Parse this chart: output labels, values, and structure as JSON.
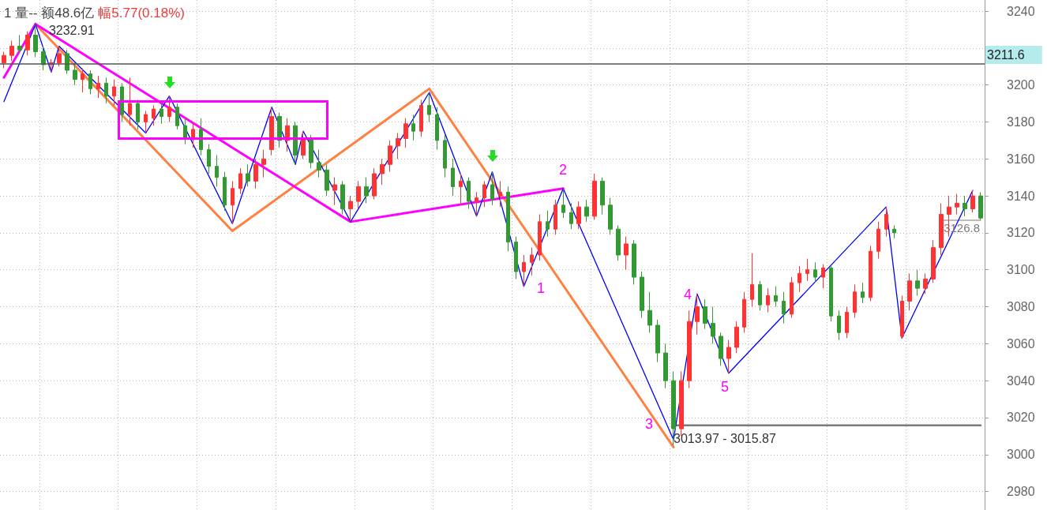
{
  "chart_data": {
    "type": "candlestick",
    "title": "1 量-- 额48.6亿",
    "subtitle": "幅5.77(0.18%)",
    "categories": [
      null,
      null,
      null,
      null,
      null,
      null,
      null,
      null,
      null,
      null,
      null,
      null,
      null,
      null,
      null,
      null,
      null,
      null,
      null,
      null,
      null,
      null,
      null,
      null,
      null,
      null,
      null,
      null,
      null,
      null,
      null,
      null,
      null,
      null,
      null,
      null,
      null,
      null,
      null,
      null,
      null,
      null,
      null,
      null,
      null,
      null,
      null,
      null,
      null,
      null,
      null,
      null,
      null,
      null,
      null,
      null,
      null,
      null,
      null,
      null,
      null,
      null,
      null,
      null,
      null,
      null,
      null,
      null,
      null,
      null,
      null,
      null,
      null,
      null,
      null,
      null,
      null,
      null,
      null,
      null,
      null,
      null,
      null,
      null,
      null,
      null,
      null,
      null,
      null,
      null,
      null,
      null,
      null,
      null,
      null,
      null,
      null,
      null,
      null,
      null,
      null,
      null,
      null,
      null,
      null,
      null,
      null,
      null,
      null,
      null,
      null,
      null,
      null,
      null,
      null,
      null,
      null,
      null,
      null,
      null,
      null,
      null,
      null,
      null,
      null
    ],
    "ohlc": [
      [
        3212,
        3218,
        3209,
        3216
      ],
      [
        3216,
        3224,
        3213,
        3221
      ],
      [
        3221,
        3227,
        3217,
        3219
      ],
      [
        3219,
        3229,
        3216,
        3227
      ],
      [
        3227,
        3232.91,
        3215,
        3218
      ],
      [
        3218,
        3221,
        3208,
        3211
      ],
      [
        3211,
        3214,
        3207,
        3212
      ],
      [
        3212,
        3221,
        3210,
        3217
      ],
      [
        3217,
        3219,
        3206,
        3208
      ],
      [
        3208,
        3212,
        3200,
        3203
      ],
      [
        3203,
        3209,
        3196,
        3206
      ],
      [
        3206,
        3208,
        3195,
        3198
      ],
      [
        3198,
        3205,
        3193,
        3201
      ],
      [
        3201,
        3204,
        3190,
        3194
      ],
      [
        3194,
        3203,
        3189,
        3199
      ],
      [
        3199,
        3201,
        3180,
        3184
      ],
      [
        3184,
        3204,
        3178,
        3190
      ],
      [
        3190,
        3192,
        3176,
        3180
      ],
      [
        3180,
        3186,
        3174,
        3184
      ],
      [
        3182,
        3189,
        3178,
        3187
      ],
      [
        3187,
        3190,
        3179,
        3183
      ],
      [
        3183,
        3194,
        3180,
        3188
      ],
      [
        3188,
        3190,
        3176,
        3178
      ],
      [
        3178,
        3182,
        3168,
        3171
      ],
      [
        3171,
        3180,
        3166,
        3176
      ],
      [
        3176,
        3182,
        3162,
        3165
      ],
      [
        3165,
        3168,
        3152,
        3156
      ],
      [
        3156,
        3162,
        3145,
        3150
      ],
      [
        3150,
        3153,
        3132,
        3135
      ],
      [
        3135,
        3148,
        3125,
        3144
      ],
      [
        3144,
        3155,
        3141,
        3152
      ],
      [
        3152,
        3157,
        3145,
        3148
      ],
      [
        3148,
        3160,
        3144,
        3157
      ],
      [
        3157,
        3165,
        3150,
        3160
      ],
      [
        3165,
        3188,
        3162,
        3183
      ],
      [
        3183,
        3185,
        3166,
        3170
      ],
      [
        3170,
        3182,
        3164,
        3178
      ],
      [
        3178,
        3180,
        3157,
        3162
      ],
      [
        3162,
        3175,
        3160,
        3171
      ],
      [
        3171,
        3173,
        3155,
        3158
      ],
      [
        3158,
        3165,
        3150,
        3154
      ],
      [
        3154,
        3157,
        3140,
        3143
      ],
      [
        3143,
        3150,
        3135,
        3146
      ],
      [
        3146,
        3148,
        3130,
        3133
      ],
      [
        3133,
        3140,
        3126,
        3137
      ],
      [
        3137,
        3148,
        3133,
        3145
      ],
      [
        3145,
        3150,
        3136,
        3140
      ],
      [
        3140,
        3155,
        3138,
        3152
      ],
      [
        3152,
        3160,
        3146,
        3157
      ],
      [
        3157,
        3170,
        3153,
        3167
      ],
      [
        3167,
        3174,
        3160,
        3171
      ],
      [
        3171,
        3182,
        3166,
        3179
      ],
      [
        3179,
        3184,
        3170,
        3175
      ],
      [
        3175,
        3192,
        3172,
        3189
      ],
      [
        3189,
        3196,
        3180,
        3184
      ],
      [
        3184,
        3188,
        3165,
        3170
      ],
      [
        3170,
        3173,
        3150,
        3155
      ],
      [
        3155,
        3160,
        3140,
        3145
      ],
      [
        3145,
        3152,
        3135,
        3148
      ],
      [
        3148,
        3150,
        3133,
        3137
      ],
      [
        3137,
        3142,
        3129,
        3139
      ],
      [
        3139,
        3148,
        3134,
        3146
      ],
      [
        3146,
        3153,
        3135,
        3138
      ],
      [
        3140,
        3148,
        3134,
        3142
      ],
      [
        3142,
        3145,
        3110,
        3115
      ],
      [
        3115,
        3118,
        3095,
        3099
      ],
      [
        3099,
        3108,
        3091,
        3104
      ],
      [
        3104,
        3112,
        3097,
        3108
      ],
      [
        3108,
        3130,
        3105,
        3126
      ],
      [
        3126,
        3132,
        3118,
        3122
      ],
      [
        3122,
        3138,
        3119,
        3135
      ],
      [
        3135,
        3144,
        3128,
        3131
      ],
      [
        3131,
        3136,
        3122,
        3125
      ],
      [
        3125,
        3137,
        3122,
        3134
      ],
      [
        3134,
        3138,
        3126,
        3129
      ],
      [
        3129,
        3152,
        3127,
        3148
      ],
      [
        3148,
        3150,
        3130,
        3135
      ],
      [
        3135,
        3139,
        3119,
        3122
      ],
      [
        3122,
        3124,
        3105,
        3108
      ],
      [
        3108,
        3118,
        3100,
        3114
      ],
      [
        3114,
        3116,
        3092,
        3096
      ],
      [
        3096,
        3099,
        3074,
        3078
      ],
      [
        3078,
        3088,
        3066,
        3070
      ],
      [
        3070,
        3073,
        3050,
        3055
      ],
      [
        3055,
        3060,
        3036,
        3040
      ],
      [
        3040,
        3045,
        3005,
        3014
      ],
      [
        3014,
        3045,
        3010,
        3040
      ],
      [
        3040,
        3078,
        3036,
        3072
      ],
      [
        3072,
        3087,
        3065,
        3080
      ],
      [
        3080,
        3084,
        3068,
        3071
      ],
      [
        3071,
        3080,
        3060,
        3064
      ],
      [
        3064,
        3066,
        3048,
        3052
      ],
      [
        3052,
        3062,
        3044,
        3058
      ],
      [
        3058,
        3072,
        3055,
        3069
      ],
      [
        3069,
        3088,
        3066,
        3084
      ],
      [
        3084,
        3109,
        3080,
        3092
      ],
      [
        3092,
        3094,
        3078,
        3081
      ],
      [
        3081,
        3090,
        3077,
        3086
      ],
      [
        3086,
        3091,
        3080,
        3083
      ],
      [
        3083,
        3088,
        3071,
        3076
      ],
      [
        3076,
        3096,
        3074,
        3093
      ],
      [
        3093,
        3102,
        3088,
        3098
      ],
      [
        3098,
        3106,
        3094,
        3100
      ],
      [
        3100,
        3104,
        3093,
        3096
      ],
      [
        3096,
        3103,
        3090,
        3101
      ],
      [
        3101,
        3102,
        3072,
        3075
      ],
      [
        3075,
        3078,
        3062,
        3066
      ],
      [
        3066,
        3080,
        3063,
        3077
      ],
      [
        3077,
        3092,
        3074,
        3088
      ],
      [
        3088,
        3093,
        3082,
        3085
      ],
      [
        3085,
        3113,
        3083,
        3110
      ],
      [
        3110,
        3126,
        3106,
        3122
      ],
      [
        3122,
        3134,
        3118,
        3130
      ],
      [
        3122,
        3124,
        3117,
        3120
      ],
      [
        3064,
        3086,
        3063,
        3083
      ],
      [
        3083,
        3098,
        3078,
        3094
      ],
      [
        3094,
        3100,
        3086,
        3090
      ],
      [
        3090,
        3098,
        3087,
        3095
      ],
      [
        3095,
        3116,
        3093,
        3112
      ],
      [
        3112,
        3136,
        3108,
        3130
      ],
      [
        3130,
        3140,
        3118,
        3134
      ],
      [
        3134,
        3141,
        3130,
        3136
      ],
      [
        3136,
        3140,
        3129,
        3133
      ],
      [
        3133,
        3143,
        3131,
        3140
      ],
      [
        3140,
        3142,
        3127,
        3128
      ]
    ],
    "colors": [
      "#ff3333",
      "#ff3333",
      "#339933",
      "#ff3333",
      "#339933",
      "#339933",
      "#ff3333",
      "#ff3333",
      "#339933",
      "#339933",
      "#ff3333",
      "#339933",
      "#ff3333",
      "#339933",
      "#ff3333",
      "#339933",
      "#ff3333",
      "#339933",
      "#ff3333",
      "#ff3333",
      "#339933",
      "#ff3333",
      "#339933",
      "#339933",
      "#ff3333",
      "#339933",
      "#339933",
      "#339933",
      "#339933",
      "#ff3333",
      "#ff3333",
      "#339933",
      "#ff3333",
      "#ff3333",
      "#ff3333",
      "#339933",
      "#ff3333",
      "#339933",
      "#ff3333",
      "#339933",
      "#339933",
      "#339933",
      "#ff3333",
      "#339933",
      "#ff3333",
      "#ff3333",
      "#339933",
      "#ff3333",
      "#ff3333",
      "#ff3333",
      "#ff3333",
      "#ff3333",
      "#339933",
      "#ff3333",
      "#339933",
      "#339933",
      "#339933",
      "#339933",
      "#ff3333",
      "#339933",
      "#ff3333",
      "#ff3333",
      "#339933",
      "#ff3333",
      "#339933",
      "#339933",
      "#ff3333",
      "#ff3333",
      "#ff3333",
      "#339933",
      "#ff3333",
      "#339933",
      "#339933",
      "#ff3333",
      "#339933",
      "#ff3333",
      "#339933",
      "#339933",
      "#339933",
      "#ff3333",
      "#339933",
      "#339933",
      "#339933",
      "#339933",
      "#339933",
      "#339933",
      "#ff3333",
      "#ff3333",
      "#ff3333",
      "#339933",
      "#339933",
      "#339933",
      "#ff3333",
      "#ff3333",
      "#ff3333",
      "#ff3333",
      "#339933",
      "#ff3333",
      "#339933",
      "#339933",
      "#ff3333",
      "#ff3333",
      "#ff3333",
      "#339933",
      "#ff3333",
      "#339933",
      "#339933",
      "#ff3333",
      "#ff3333",
      "#339933",
      "#ff3333",
      "#ff3333",
      "#ff3333",
      "#339933",
      "#ff3333",
      "#ff3333",
      "#339933",
      "#ff3333",
      "#ff3333",
      "#ff3333",
      "#ff3333",
      "#ff3333",
      "#339933",
      "#ff3333",
      "#339933"
    ],
    "series": [
      {
        "type": "line",
        "color": "#7a7a7a",
        "values": [
          null,
          null,
          null,
          null,
          null,
          null,
          null,
          null,
          null,
          null,
          null,
          null,
          null,
          null,
          null,
          null,
          null,
          null,
          null,
          null,
          null,
          null,
          null,
          null,
          null,
          null,
          null,
          null,
          null,
          null,
          null,
          null,
          null,
          null,
          null,
          null,
          null,
          null,
          null,
          null,
          null,
          null,
          null,
          null,
          null,
          null,
          null,
          null,
          null,
          null,
          null,
          null,
          null,
          null,
          null,
          null,
          null,
          null,
          null,
          null,
          null,
          null,
          null,
          null,
          null,
          null,
          null,
          null,
          null,
          null,
          null,
          null,
          null,
          null,
          null,
          null,
          null,
          null,
          null,
          null,
          null,
          null,
          null,
          null,
          null,
          3015.87,
          3015.87,
          3015.87,
          3015.87,
          3015.87,
          3015.87,
          3015.87,
          3015.87,
          3015.87,
          3015.87,
          3015.87,
          3015.87,
          3015.87,
          3015.87,
          3015.87,
          3015.87,
          3015.87,
          3015.87,
          3015.87,
          3015.87,
          3015.87,
          3015.87,
          3015.87,
          3015.87,
          3015.87,
          3015.87,
          3015.87,
          3015.87,
          3015.87,
          3015.87,
          3015.87,
          3015.87,
          3015.87,
          3015.87,
          3015.87,
          3015.87,
          3015.87,
          3015.87,
          3015.87,
          3015.87
        ]
      },
      {
        "type": "line",
        "color": "#7a7a7a",
        "values": [
          null,
          null,
          null,
          null,
          null,
          null,
          null,
          null,
          null,
          null,
          null,
          null,
          null,
          null,
          null,
          null,
          null,
          null,
          null,
          null,
          null,
          null,
          null,
          null,
          null,
          null,
          null,
          null,
          null,
          null,
          null,
          null,
          null,
          null,
          null,
          null,
          null,
          null,
          null,
          null,
          null,
          null,
          null,
          null,
          null,
          null,
          null,
          null,
          null,
          null,
          null,
          null,
          null,
          null,
          null,
          null,
          null,
          null,
          null,
          null,
          null,
          null,
          null,
          null,
          null,
          null,
          null,
          null,
          null,
          null,
          null,
          null,
          null,
          null,
          null,
          null,
          null,
          null,
          null,
          null,
          null,
          null,
          null,
          null,
          null,
          null,
          null,
          null,
          null,
          null,
          null,
          null,
          null,
          null,
          null,
          null,
          null,
          null,
          null,
          null,
          null,
          null,
          null,
          null,
          null,
          null,
          null,
          null,
          null,
          null,
          null,
          null,
          null,
          null,
          null,
          null,
          null,
          null,
          null,
          3126.8,
          3126.8,
          3126.8,
          3126.8,
          3126.8,
          3126.8
        ],
        "value_labels": [
          null,
          null,
          null,
          null,
          null,
          null,
          null,
          null,
          null,
          null,
          null,
          null,
          null,
          null,
          null,
          null,
          null,
          null,
          null,
          null,
          null,
          null,
          null,
          null,
          null,
          null,
          null,
          null,
          null,
          null,
          null,
          null,
          null,
          null,
          null,
          null,
          null,
          null,
          null,
          null,
          null,
          null,
          null,
          null,
          null,
          null,
          null,
          null,
          null,
          null,
          null,
          null,
          null,
          null,
          null,
          null,
          null,
          null,
          null,
          null,
          null,
          null,
          null,
          null,
          null,
          null,
          null,
          null,
          null,
          null,
          null,
          null,
          null,
          null,
          null,
          null,
          null,
          null,
          null,
          null,
          null,
          null,
          null,
          null,
          null,
          null,
          null,
          null,
          null,
          null,
          null,
          null,
          null,
          null,
          null,
          null,
          null,
          null,
          null,
          null,
          null,
          null,
          null,
          null,
          null,
          null,
          null,
          null,
          null,
          null,
          null,
          null,
          null,
          null,
          null,
          null,
          null,
          null,
          null,
          "3126.8",
          null,
          null,
          null,
          null,
          null
        ]
      },
      {
        "type": "line",
        "color": "#ff8040",
        "values": [
          null,
          null,
          null,
          null,
          3233,
          null,
          null,
          null,
          null,
          null,
          null,
          null,
          null,
          null,
          null,
          null,
          null,
          null,
          null,
          null,
          null,
          null,
          null,
          null,
          null,
          null,
          null,
          null,
          null,
          3121,
          null,
          null,
          null,
          null,
          null,
          null,
          null,
          null,
          null,
          null,
          null,
          null,
          null,
          null,
          null,
          null,
          null,
          null,
          null,
          null,
          null,
          null,
          null,
          null,
          3198,
          null,
          null,
          null,
          null,
          null,
          null,
          null,
          null,
          null,
          null,
          null,
          null,
          null,
          null,
          null,
          null,
          null,
          null,
          null,
          null,
          null,
          null,
          null,
          null,
          null,
          null,
          null,
          null,
          null,
          null,
          3004,
          null,
          null,
          null,
          null,
          null,
          null,
          null,
          null,
          null,
          null,
          null,
          null,
          null,
          null,
          null,
          null,
          null,
          null,
          null,
          null,
          null,
          null,
          null,
          null,
          null,
          null,
          null,
          null,
          null,
          null,
          null,
          null,
          null,
          null,
          null,
          null,
          null,
          null,
          null
        ]
      },
      {
        "type": "line",
        "color": "#ff00ff",
        "values": [
          3204,
          null,
          null,
          null,
          3233,
          null,
          null,
          null,
          null,
          null,
          null,
          null,
          null,
          null,
          null,
          null,
          null,
          null,
          null,
          null,
          null,
          null,
          null,
          null,
          null,
          null,
          null,
          null,
          null,
          null,
          null,
          null,
          null,
          null,
          null,
          null,
          null,
          null,
          null,
          null,
          null,
          null,
          null,
          null,
          3126,
          null,
          null,
          null,
          null,
          null,
          null,
          null,
          null,
          null,
          null,
          null,
          null,
          null,
          null,
          null,
          null,
          null,
          null,
          null,
          null,
          null,
          null,
          null,
          null,
          null,
          null,
          3144,
          null,
          null,
          null,
          null,
          null,
          null,
          null,
          null,
          null,
          null,
          null,
          null,
          null,
          null,
          null,
          null,
          null,
          null,
          null,
          null,
          null,
          null,
          null,
          null,
          null,
          null,
          null,
          null,
          null,
          null,
          null,
          null,
          null,
          null,
          null,
          null,
          null,
          null,
          null,
          null,
          null,
          null,
          null,
          null,
          null,
          null,
          null,
          null,
          null,
          null,
          null,
          null,
          null
        ]
      },
      {
        "type": "line",
        "color": "#0000ff",
        "values": [
          3191,
          null,
          null,
          null,
          3232.91,
          null,
          3207,
          3221,
          null,
          null,
          null,
          null,
          null,
          null,
          null,
          null,
          null,
          null,
          3174,
          null,
          null,
          3194,
          null,
          null,
          null,
          null,
          null,
          null,
          null,
          3125,
          null,
          null,
          null,
          null,
          3188,
          null,
          null,
          3157,
          3175,
          null,
          null,
          null,
          null,
          null,
          3126,
          null,
          null,
          null,
          null,
          null,
          null,
          null,
          null,
          null,
          3196,
          null,
          null,
          null,
          null,
          null,
          3129,
          null,
          3153,
          null,
          null,
          null,
          3091,
          null,
          null,
          null,
          null,
          3144,
          null,
          null,
          null,
          null,
          null,
          null,
          null,
          null,
          null,
          null,
          null,
          null,
          null,
          3008,
          null,
          null,
          3087,
          null,
          null,
          null,
          3044,
          null,
          null,
          null,
          null,
          null,
          null,
          null,
          null,
          null,
          null,
          null,
          null,
          null,
          null,
          null,
          null,
          null,
          null,
          null,
          3134,
          null,
          3063,
          null,
          null,
          null,
          null,
          null,
          null,
          null,
          null,
          3143,
          null
        ],
        "value_labels": [
          null,
          null,
          null,
          null,
          "3232.91",
          null,
          null,
          null,
          null,
          null,
          null,
          null,
          null,
          null,
          null,
          null,
          null,
          null,
          null,
          null,
          null,
          null,
          null,
          null,
          null,
          null,
          null,
          null,
          null,
          null,
          null,
          null,
          null,
          null,
          null,
          null,
          null,
          null,
          null,
          null,
          null,
          null,
          null,
          null,
          null,
          null,
          null,
          null,
          null,
          null,
          null,
          null,
          null,
          null,
          null,
          null,
          null,
          null,
          null,
          null,
          null,
          null,
          null,
          null,
          null,
          null,
          null,
          null,
          null,
          null,
          null,
          null,
          null,
          null,
          null,
          null,
          null,
          null,
          null,
          null,
          null,
          null,
          null,
          null,
          null,
          null,
          null,
          null,
          null,
          null,
          null,
          null,
          null,
          null,
          null,
          null,
          null,
          null,
          null,
          null,
          null,
          null,
          null,
          null,
          null,
          null,
          null,
          null,
          null,
          null,
          null,
          null,
          null,
          null,
          null,
          null,
          null,
          null,
          null,
          null,
          null,
          null,
          null,
          null,
          null
        ]
      }
    ],
    "annotations": [
      {
        "text": "3013.97 - 3015.87",
        "y": 3015.87
      },
      "1",
      "2",
      "3",
      "4",
      "5"
    ],
    "ylim": [
      2970,
      3246
    ],
    "yticks": [
      2980,
      3000,
      3020,
      3040,
      3060,
      3080,
      3100,
      3120,
      3140,
      3160,
      3180,
      3200,
      {
        "value": 3220,
        "label": null
      },
      3240
    ],
    "ref_lines": [
      {
        "axis": "y",
        "value": 3211.6,
        "label": "3211.6",
        "color": "#555555"
      }
    ],
    "grid": true,
    "tick_labels": "y",
    "marker": "none"
  }
}
